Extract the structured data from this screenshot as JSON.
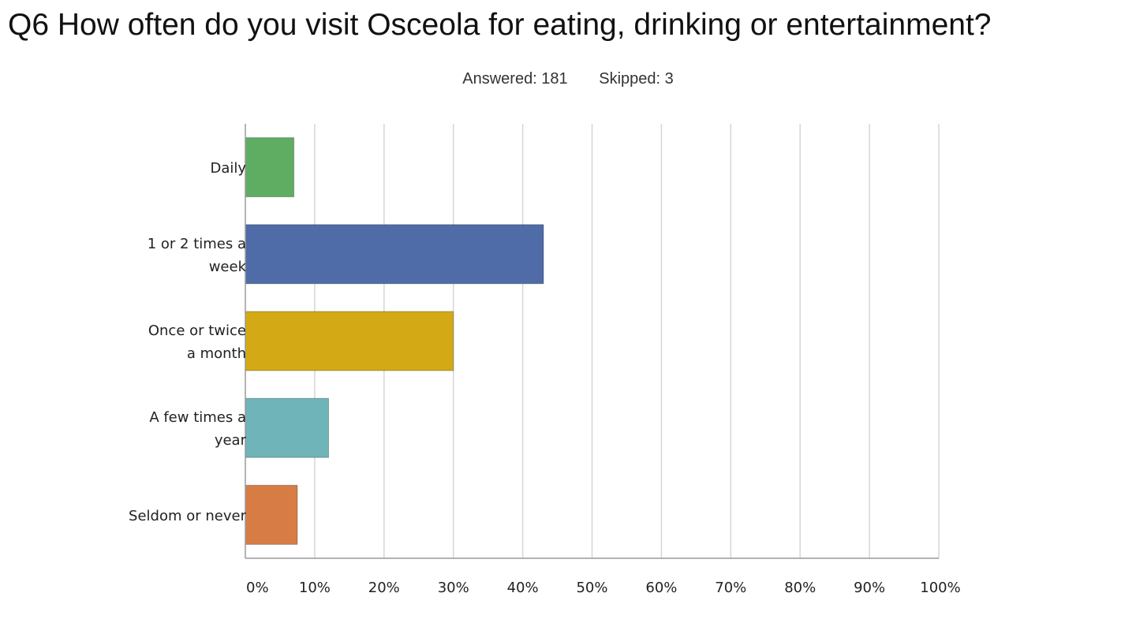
{
  "header": {
    "title": "Q6 How often do you visit Osceola for eating, drinking or entertainment?",
    "answered_label": "Answered: 181",
    "skipped_label": "Skipped: 3"
  },
  "chart_data": {
    "type": "bar",
    "orientation": "horizontal",
    "categories": [
      [
        "Daily"
      ],
      [
        "1 or 2 times a",
        "week"
      ],
      [
        "Once or twice",
        "a month"
      ],
      [
        "A few times a",
        "year"
      ],
      [
        "Seldom or never"
      ]
    ],
    "values": [
      7,
      43,
      30,
      12,
      7.5
    ],
    "colors": [
      "#5fad62",
      "#4f6ca8",
      "#d3aa16",
      "#6fb4b8",
      "#d77c44"
    ],
    "xlim": [
      0,
      100
    ],
    "xticks": [
      0,
      10,
      20,
      30,
      40,
      50,
      60,
      70,
      80,
      90,
      100
    ],
    "xtick_labels": [
      "0%",
      "10%",
      "20%",
      "30%",
      "40%",
      "50%",
      "60%",
      "70%",
      "80%",
      "90%",
      "100%"
    ],
    "grid": "vertical"
  }
}
